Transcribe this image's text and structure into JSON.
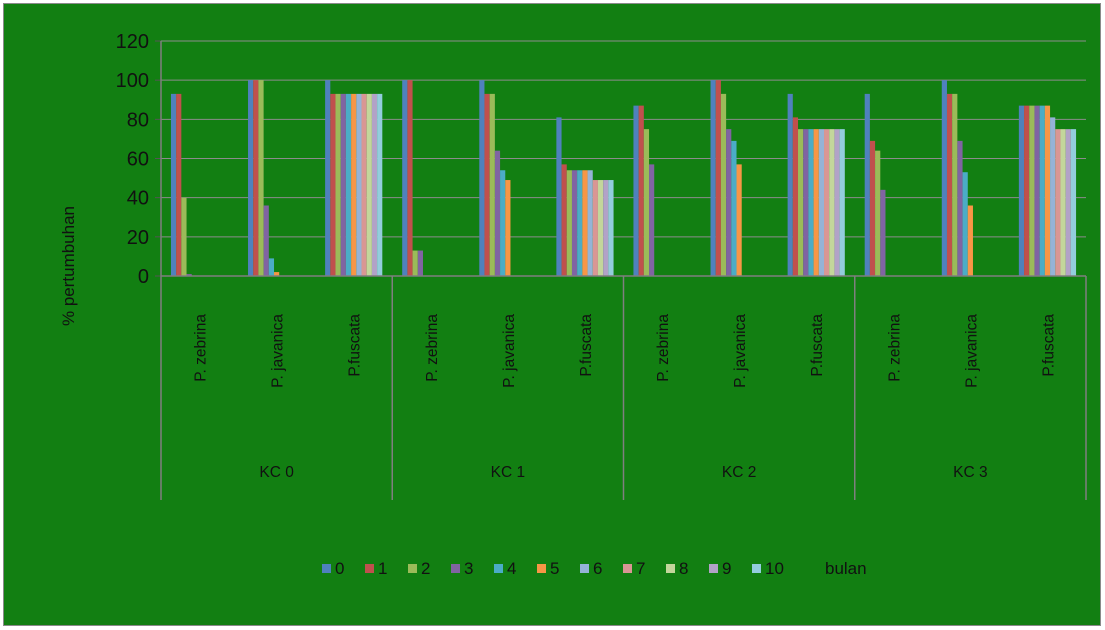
{
  "chart_data": {
    "type": "bar",
    "ylabel": "% pertumbuhan",
    "ylim": [
      0,
      120
    ],
    "yticks": [
      0,
      20,
      40,
      60,
      80,
      100,
      120
    ],
    "grid": "horizontal",
    "legend_position": "bottom",
    "legend_suffix": "bulan",
    "groups": [
      "KC 0",
      "KC 1",
      "KC 2",
      "KC 3"
    ],
    "categories": [
      "P. zebrina",
      "P. javanica",
      "P.fuscata",
      "P. zebrina",
      "P. javanica",
      "P.fuscata",
      "P. zebrina",
      "P. javanica",
      "P.fuscata",
      "P. zebrina",
      "P. javanica",
      "P.fuscata"
    ],
    "series": [
      {
        "name": "0",
        "color": "#4f81bd",
        "values": [
          93,
          100,
          100,
          100,
          100,
          81,
          87,
          100,
          93,
          93,
          100,
          87
        ]
      },
      {
        "name": "1",
        "color": "#c0504d",
        "values": [
          93,
          100,
          93,
          100,
          93,
          57,
          87,
          100,
          81,
          69,
          93,
          87
        ]
      },
      {
        "name": "2",
        "color": "#9bbb59",
        "values": [
          40,
          100,
          93,
          13,
          93,
          54,
          75,
          93,
          75,
          64,
          93,
          87
        ]
      },
      {
        "name": "3",
        "color": "#8064a2",
        "values": [
          1,
          36,
          93,
          13,
          64,
          54,
          57,
          75,
          75,
          44,
          69,
          87
        ]
      },
      {
        "name": "4",
        "color": "#4bacc6",
        "values": [
          0,
          9,
          93,
          0,
          54,
          54,
          0,
          69,
          75,
          0,
          53,
          87
        ]
      },
      {
        "name": "5",
        "color": "#f79646",
        "values": [
          0,
          2,
          93,
          0,
          49,
          54,
          0,
          57,
          75,
          0,
          36,
          87
        ]
      },
      {
        "name": "6",
        "color": "#95b3d7",
        "values": [
          0,
          0,
          93,
          0,
          0,
          54,
          0,
          0,
          75,
          0,
          0,
          81
        ]
      },
      {
        "name": "7",
        "color": "#d99694",
        "values": [
          0,
          0,
          93,
          0,
          0,
          49,
          0,
          0,
          75,
          0,
          0,
          75
        ]
      },
      {
        "name": "8",
        "color": "#c3d69b",
        "values": [
          0,
          0,
          93,
          0,
          0,
          49,
          0,
          0,
          75,
          0,
          0,
          75
        ]
      },
      {
        "name": "9",
        "color": "#b2a2c7",
        "values": [
          0,
          0,
          93,
          0,
          0,
          49,
          0,
          0,
          75,
          0,
          0,
          75
        ]
      },
      {
        "name": "10",
        "color": "#93cddd",
        "values": [
          0,
          0,
          93,
          0,
          0,
          49,
          0,
          0,
          75,
          0,
          0,
          75
        ]
      }
    ]
  }
}
